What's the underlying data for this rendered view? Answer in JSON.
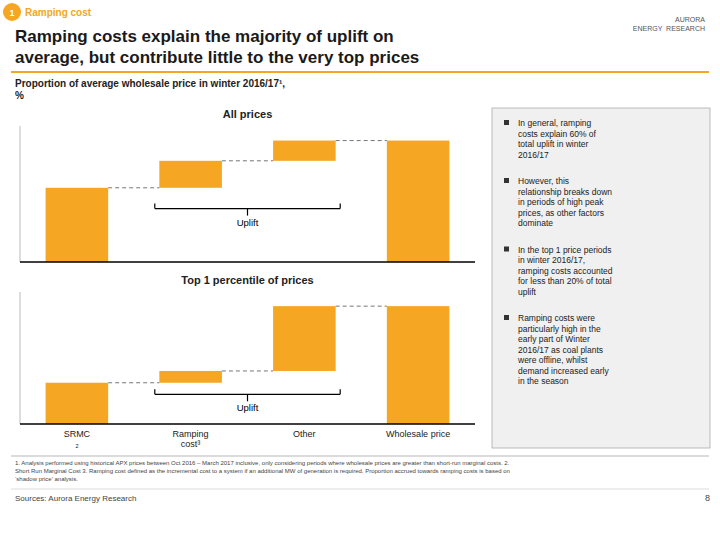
{
  "title": "Ramping costs explain the majority of uplift on\naverage, but contribute little to the very top prices",
  "slide_label": "Ramping cost",
  "slide_num": "1",
  "logo": "AURORA\nENERGY  RESEARCH",
  "subtitle": "Proportion of average wholesale price in winter 2016/17¹,\n%",
  "bullets": [
    "In general, ramping\ncosts explain 60% of\ntotal uplift in winter\n2016/17",
    "However, this\nrelationship breaks down\nin periods of high peak\nprices, as other factors\ndominate",
    "In the top 1 price periods\nin winter 2016/17,\nramping costs accounted\nfor less than 20% of total\nuplift",
    "Ramping costs were\nparticularly high in the\nearly part of Winter\n2016/17 as coal plants\nwere offline, whilst\ndemand increased early\nin the season"
  ],
  "footnote": "1. Analysis performed using historical APX prices between Oct 2016 – March 2017 inclusive, only considering periods where wholesale prices are greater than short-run marginal costs. 2.\nShort Run Marginal Cost 3. Ramping cost defined as the incremental cost to a system if an additional MW of generation is required. Proportion accrued towards ramping costs is based on\n‘shadow price’ analysis.",
  "source": "Sources: Aurora Energy Research",
  "page_num": "8",
  "accent_color": "#F5A623",
  "chart_data": [
    {
      "type": "waterfall",
      "title": "All prices",
      "categories": [
        null,
        null,
        null,
        null
      ],
      "values": [
        55,
        20,
        15,
        90
      ],
      "color": "#F5A623",
      "ylim": [
        0,
        100.8
      ],
      "annotation": "Uplift",
      "tick_labels": false
    },
    {
      "type": "waterfall",
      "title": "Top 1 percentile of prices",
      "categories": [
        "SRMC\n₂",
        "Ramping\ncost³",
        "Other",
        "Wholesale price"
      ],
      "values": [
        35,
        10,
        55,
        100
      ],
      "color": "#F5A623",
      "ylim": [
        0,
        112
      ],
      "annotation": "Uplift",
      "tick_labels": "x"
    }
  ]
}
